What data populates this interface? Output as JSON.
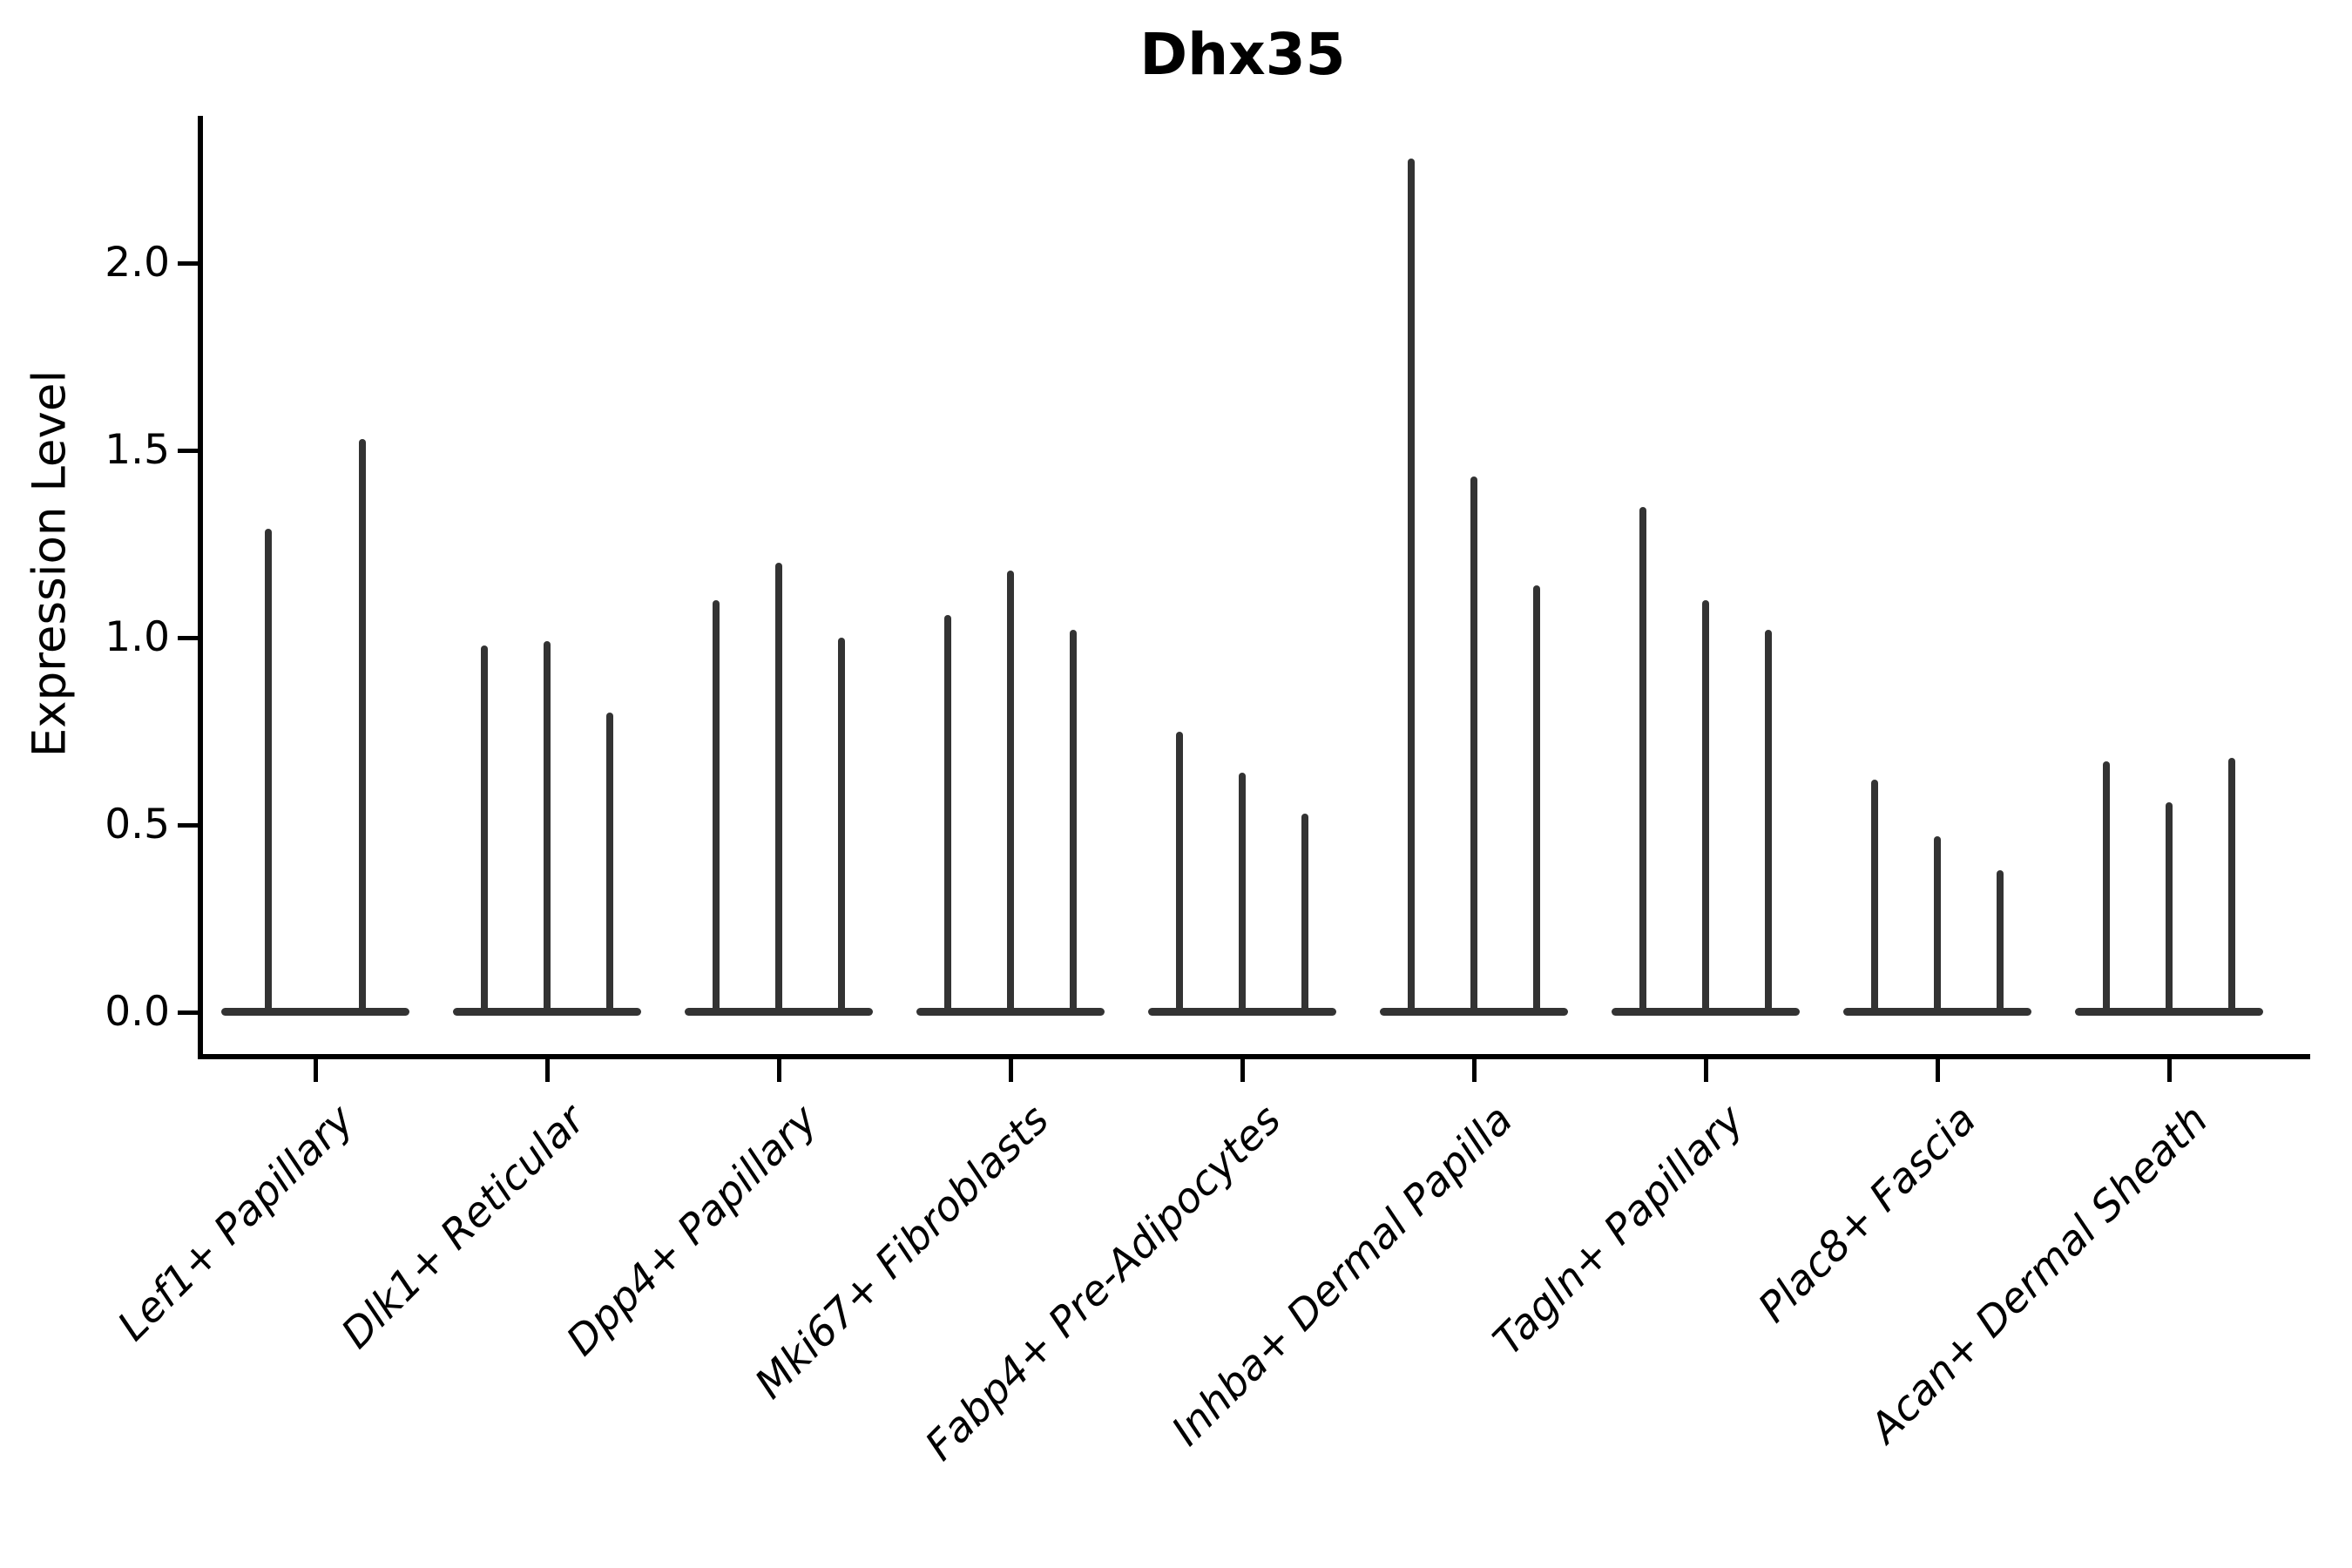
{
  "figure": {
    "title": "Dhx35",
    "ylabel": "Expression Level"
  },
  "chart_data": {
    "type": "violin",
    "title": "Dhx35",
    "xlabel": "",
    "ylabel": "Expression Level",
    "categories": [
      "Lef1+ Papillary",
      "Dlk1+ Reticular",
      "Dpp4+ Papillary",
      "Mki67+ Fibroblasts",
      "Fabp4+ Pre-Adipocytes",
      "Inhba+ Dermal Papilla",
      "Tagln+ Papillary",
      "Plac8+ Fascia",
      "Acan+ Dermal Sheath"
    ],
    "series": [
      {
        "category": "Lef1+ Papillary",
        "violin_peak_values": [
          1.29,
          1.53
        ]
      },
      {
        "category": "Dlk1+ Reticular",
        "violin_peak_values": [
          0.98,
          0.99,
          0.8
        ]
      },
      {
        "category": "Dpp4+ Papillary",
        "violin_peak_values": [
          1.1,
          1.2,
          1.0
        ]
      },
      {
        "category": "Mki67+ Fibroblasts",
        "violin_peak_values": [
          1.06,
          1.18,
          1.02
        ]
      },
      {
        "category": "Fabp4+ Pre-Adipocytes",
        "violin_peak_values": [
          0.75,
          0.64,
          0.53
        ]
      },
      {
        "category": "Inhba+ Dermal Papilla",
        "violin_peak_values": [
          2.28,
          1.43,
          1.14
        ]
      },
      {
        "category": "Tagln+ Papillary",
        "violin_peak_values": [
          1.35,
          1.1,
          1.02
        ]
      },
      {
        "category": "Plac8+ Fascia",
        "violin_peak_values": [
          0.62,
          0.47,
          0.38
        ]
      },
      {
        "category": "Acan+ Dermal Sheath",
        "violin_peak_values": [
          0.67,
          0.56,
          0.68
        ]
      }
    ],
    "violin_shape_note": "each violin is a very thin vertical spike rising from a wide flat base at expression 0 (sparse expression violins)",
    "baseline_value": 0.0,
    "yticks": [
      0.0,
      0.5,
      1.0,
      1.5,
      2.0
    ],
    "ylim": [
      -0.11,
      2.39
    ],
    "grid": false,
    "legend_position": "none",
    "violin_color": "#333333",
    "axis_color": "#000000",
    "xticklabel_style": "italic, rotated 45 degrees, right-anchored"
  }
}
